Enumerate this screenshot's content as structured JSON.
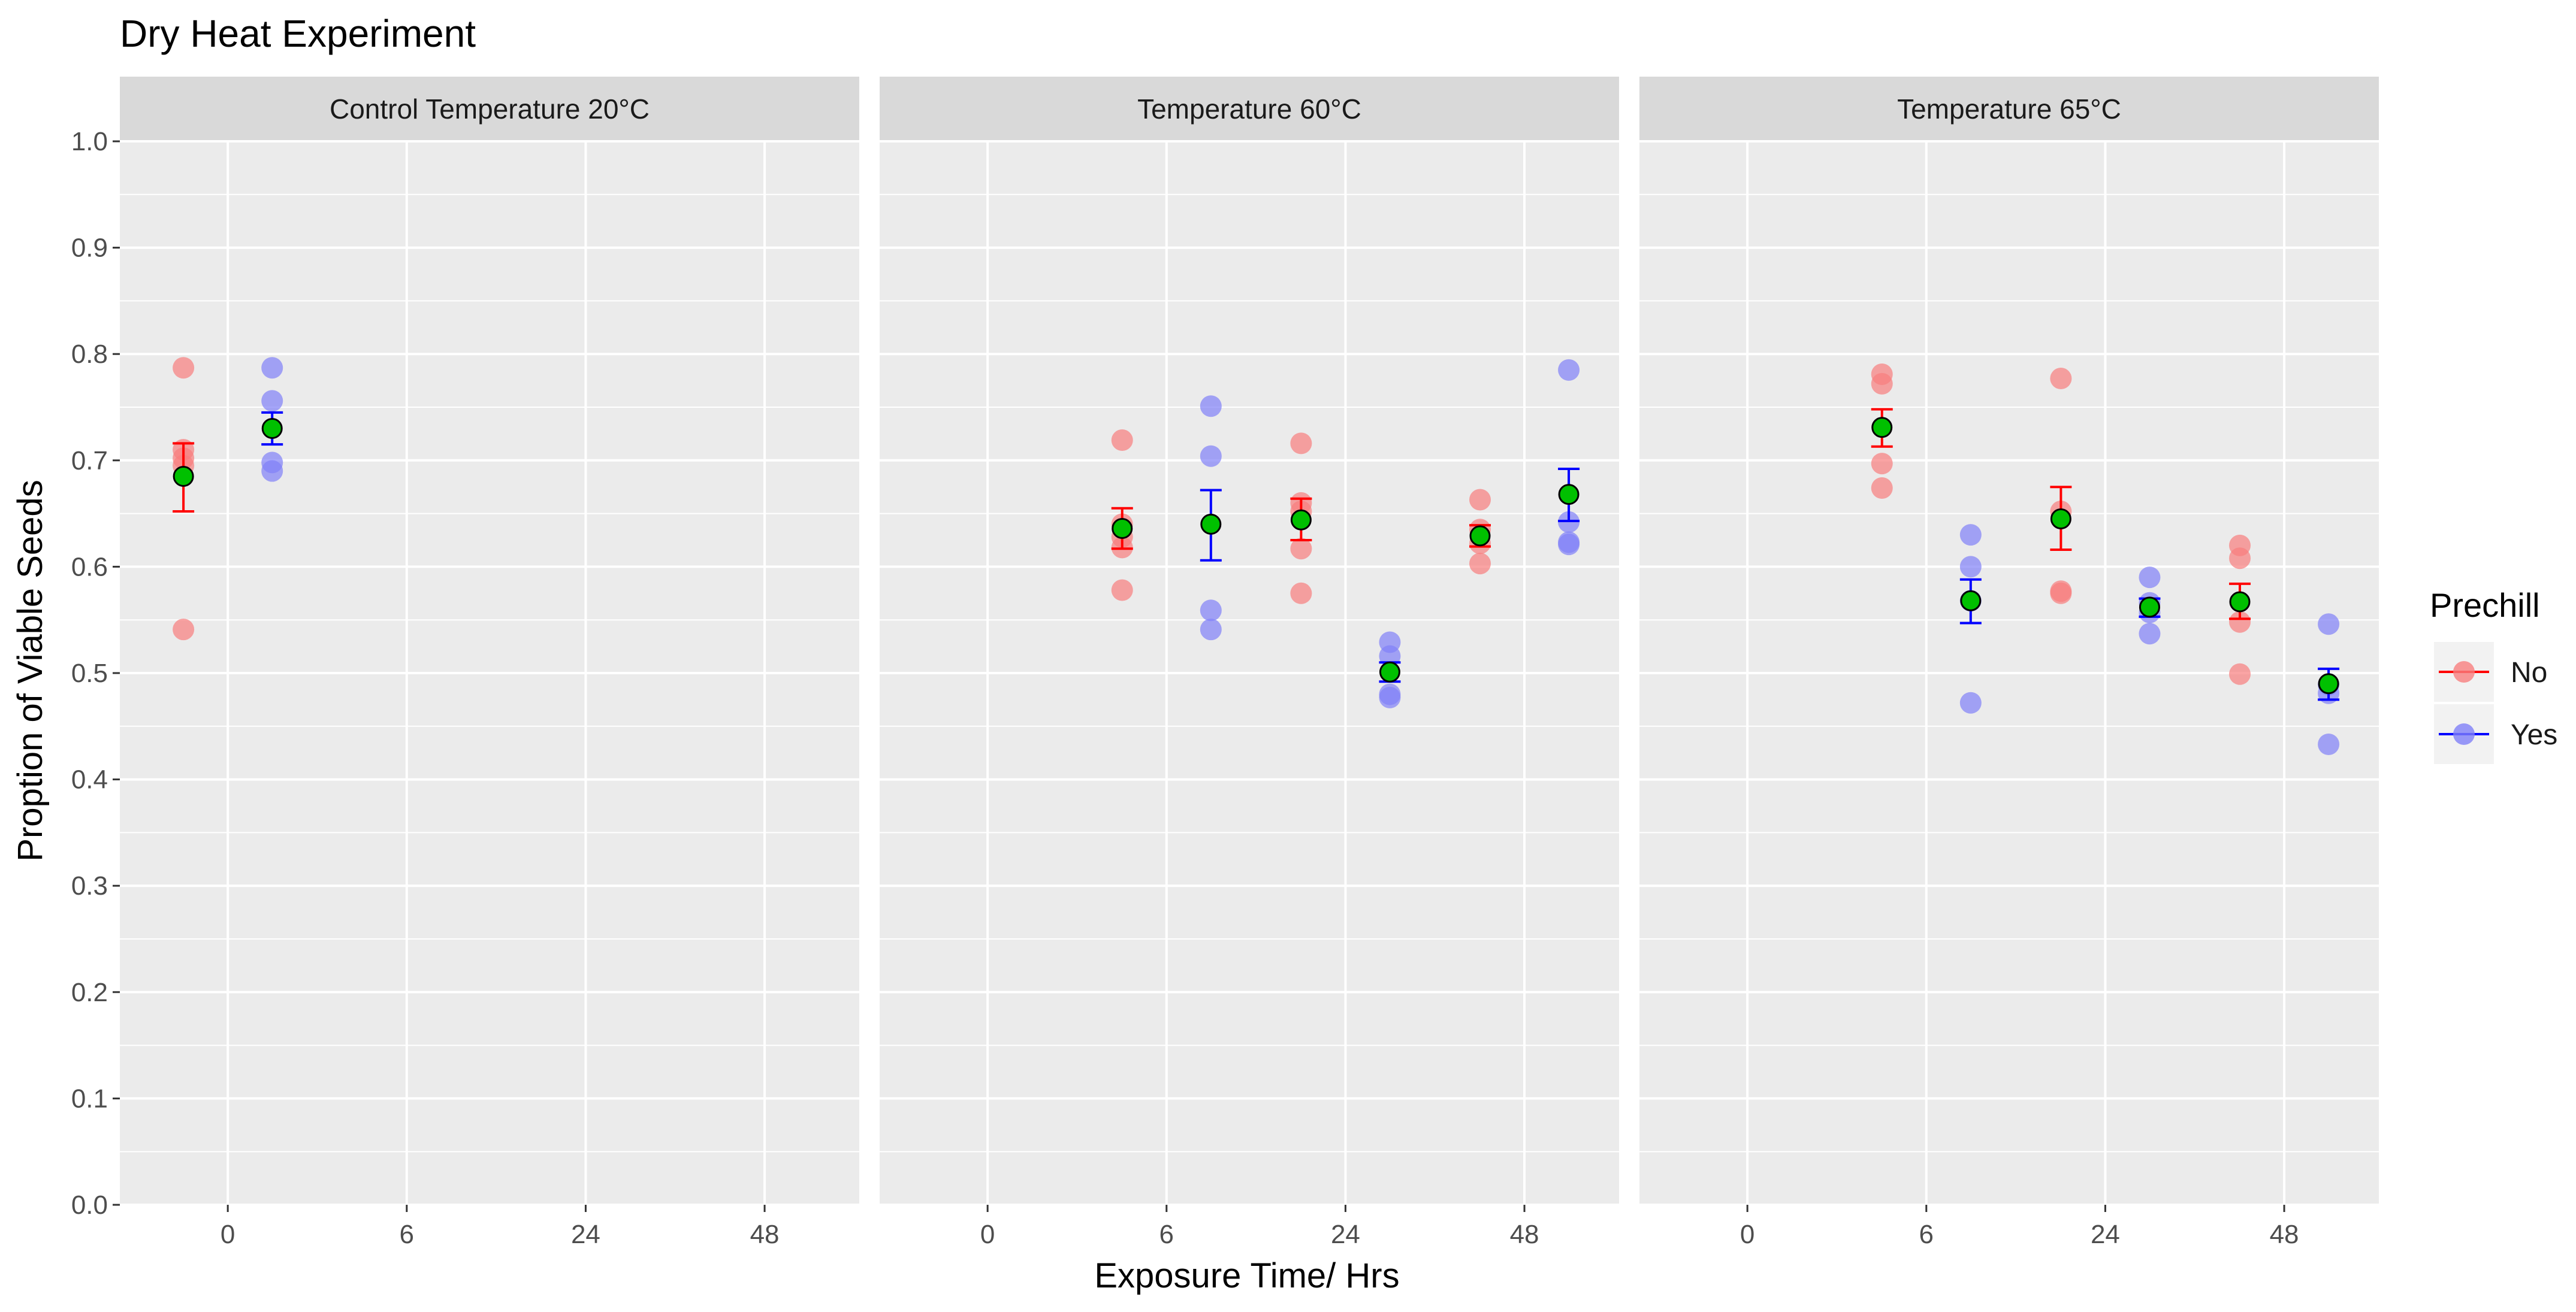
{
  "chart_data": {
    "type": "scatter",
    "title": "Dry Heat Experiment",
    "xlabel": "Exposure Time/ Hrs",
    "ylabel": "Proption of Viable Seeds",
    "x_categories": [
      "0",
      "6",
      "24",
      "48"
    ],
    "ylim": [
      0,
      1
    ],
    "y_ticks": [
      "0.0",
      "0.1",
      "0.2",
      "0.3",
      "0.4",
      "0.5",
      "0.6",
      "0.7",
      "0.8",
      "0.9",
      "1.0"
    ],
    "grid": true,
    "legend": {
      "title": "Prechill",
      "placement": "right",
      "entries": [
        {
          "label": "No",
          "color": "#f87e7e",
          "line_color": "#ff0000"
        },
        {
          "label": "Yes",
          "color": "#8080f8",
          "line_color": "#0000ff"
        }
      ]
    },
    "mean_marker_color": "#00c000",
    "panels": [
      {
        "label": "Control Temperature 20°C",
        "groups": [
          {
            "x": "0",
            "prechill": "No",
            "points": [
              0.787,
              0.71,
              0.702,
              0.695,
              0.541
            ],
            "mean": 0.685,
            "se_low": 0.652,
            "se_high": 0.716
          },
          {
            "x": "0",
            "prechill": "Yes",
            "points": [
              0.787,
              0.756,
              0.698,
              0.69
            ],
            "mean": 0.73,
            "se_low": 0.715,
            "se_high": 0.745
          }
        ]
      },
      {
        "label": "Temperature 60°C",
        "groups": [
          {
            "x": "6",
            "prechill": "No",
            "points": [
              0.719,
              0.64,
              0.628,
              0.618,
              0.578
            ],
            "mean": 0.636,
            "se_low": 0.617,
            "se_high": 0.655
          },
          {
            "x": "6",
            "prechill": "Yes",
            "points": [
              0.751,
              0.704,
              0.559,
              0.541
            ],
            "mean": 0.64,
            "se_low": 0.606,
            "se_high": 0.672
          },
          {
            "x": "24",
            "prechill": "No",
            "points": [
              0.716,
              0.66,
              0.652,
              0.617,
              0.575
            ],
            "mean": 0.644,
            "se_low": 0.625,
            "se_high": 0.664
          },
          {
            "x": "24",
            "prechill": "Yes",
            "points": [
              0.529,
              0.516,
              0.48,
              0.477
            ],
            "mean": 0.501,
            "se_low": 0.492,
            "se_high": 0.51
          },
          {
            "x": "48",
            "prechill": "No",
            "points": [
              0.663,
              0.635,
              0.622,
              0.603
            ],
            "mean": 0.629,
            "se_low": 0.619,
            "se_high": 0.639
          },
          {
            "x": "48",
            "prechill": "Yes",
            "points": [
              0.785,
              0.642,
              0.623,
              0.621
            ],
            "mean": 0.668,
            "se_low": 0.643,
            "se_high": 0.692
          }
        ]
      },
      {
        "label": "Temperature 65°C",
        "groups": [
          {
            "x": "6",
            "prechill": "No",
            "points": [
              0.781,
              0.772,
              0.697,
              0.674
            ],
            "mean": 0.731,
            "se_low": 0.713,
            "se_high": 0.748
          },
          {
            "x": "6",
            "prechill": "Yes",
            "points": [
              0.63,
              0.6,
              0.568,
              0.472
            ],
            "mean": 0.568,
            "se_low": 0.547,
            "se_high": 0.588
          },
          {
            "x": "24",
            "prechill": "No",
            "points": [
              0.777,
              0.652,
              0.577,
              0.575
            ],
            "mean": 0.645,
            "se_low": 0.616,
            "se_high": 0.675
          },
          {
            "x": "24",
            "prechill": "Yes",
            "points": [
              0.59,
              0.566,
              0.557,
              0.537
            ],
            "mean": 0.562,
            "se_low": 0.553,
            "se_high": 0.57
          },
          {
            "x": "48",
            "prechill": "No",
            "points": [
              0.62,
              0.608,
              0.548,
              0.499
            ],
            "mean": 0.567,
            "se_low": 0.551,
            "se_high": 0.584
          },
          {
            "x": "48",
            "prechill": "Yes",
            "points": [
              0.546,
              0.489,
              0.481,
              0.433
            ],
            "mean": 0.49,
            "se_low": 0.475,
            "se_high": 0.504
          }
        ]
      }
    ]
  }
}
